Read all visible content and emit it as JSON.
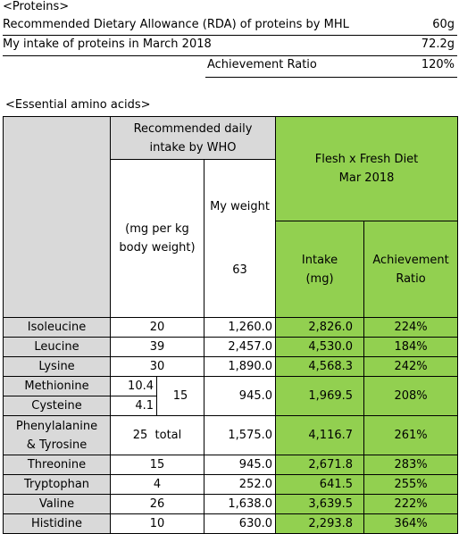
{
  "proteins": {
    "title": "<Proteins>",
    "rows": [
      {
        "label": "Recommended Dietary Allowance (RDA) of proteins by MHL",
        "value": "60g"
      },
      {
        "label": "My intake of proteins in March 2018",
        "value": "72.2g"
      },
      {
        "label": "Achievement Ratio",
        "value": "120%"
      }
    ]
  },
  "amino": {
    "title": "<Essential amino acids>",
    "header": {
      "who": [
        "Recommended daily",
        "intake by WHO"
      ],
      "diet": [
        "Flesh x Fresh Diet",
        "Mar 2018"
      ],
      "per_kg": [
        "(mg per kg",
        "body weight)"
      ],
      "weight_label": "My weight",
      "weight_value": "63",
      "intake": [
        "Intake",
        "(mg)"
      ],
      "ratio": [
        "Achievement",
        "Ratio"
      ]
    },
    "rows": [
      {
        "name": [
          "Isoleucine"
        ],
        "who": "20",
        "weight": "1,260.0",
        "intake": "2,826.0",
        "ratio": "224%"
      },
      {
        "name": [
          "Leucine"
        ],
        "who": "39",
        "weight": "2,457.0",
        "intake": "4,530.0",
        "ratio": "184%"
      },
      {
        "name": [
          "Lysine"
        ],
        "who": "30",
        "weight": "1,890.0",
        "intake": "4,568.3",
        "ratio": "242%"
      },
      {
        "name": [
          "Methionine"
        ],
        "who_sub": "10.4",
        "who": "15",
        "weight": "945.0",
        "intake": "1,969.5",
        "ratio": "208%"
      },
      {
        "name": [
          "Cysteine"
        ],
        "who_sub": "4.1"
      },
      {
        "name": [
          "Phenylalanine",
          "& Tyrosine"
        ],
        "who": "25  total",
        "weight": "1,575.0",
        "intake": "4,116.7",
        "ratio": "261%"
      },
      {
        "name": [
          "Threonine"
        ],
        "who": "15",
        "weight": "945.0",
        "intake": "2,671.8",
        "ratio": "283%"
      },
      {
        "name": [
          "Tryptophan"
        ],
        "who": "4",
        "weight": "252.0",
        "intake": "641.5",
        "ratio": "255%"
      },
      {
        "name": [
          "Valine"
        ],
        "who": "26",
        "weight": "1,638.0",
        "intake": "3,639.5",
        "ratio": "222%"
      },
      {
        "name": [
          "Histidine"
        ],
        "who": "10",
        "weight": "630.0",
        "intake": "2,293.8",
        "ratio": "364%"
      }
    ]
  }
}
